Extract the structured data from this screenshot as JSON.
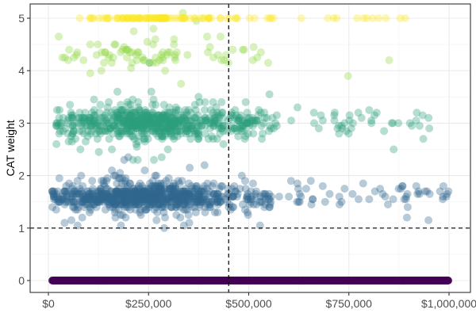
{
  "chart_data": {
    "type": "scatter",
    "title": "",
    "xlabel": "",
    "ylabel": "CAT weight",
    "xlim": [
      0,
      1000000
    ],
    "ylim": [
      0,
      5
    ],
    "x_ticks": [
      0,
      250000,
      500000,
      750000,
      1000000
    ],
    "x_tick_labels": [
      "$0",
      "$250,000",
      "$500,000",
      "$750,000",
      "$1,000,000"
    ],
    "y_ticks": [
      0,
      1,
      2,
      3,
      4,
      5
    ],
    "y_tick_labels": [
      "0",
      "1",
      "2",
      "3",
      "4",
      "5"
    ],
    "grid": true,
    "reference_lines": [
      {
        "axis": "x",
        "value": 450000,
        "style": "dashed"
      },
      {
        "axis": "y",
        "value": 1,
        "style": "dashed"
      }
    ],
    "color_scale": "viridis by CAT weight",
    "colors": [
      "#440154",
      "#3b528b",
      "#21908c",
      "#5ec962",
      "#fde725"
    ],
    "point_alpha": 0.35,
    "clusters": [
      {
        "y_center": 0,
        "y_spread": 0.0,
        "x_range": [
          10000,
          1000000
        ],
        "density": "continuous band",
        "color": "#440154"
      },
      {
        "y_center": 1.6,
        "y_spread": 0.25,
        "x_range": [
          10000,
          1000000
        ],
        "peak_x": 250000,
        "color": "#31688e"
      },
      {
        "y_center": 3.0,
        "y_spread": 0.3,
        "x_range": [
          20000,
          990000
        ],
        "peak_x": 250000,
        "color": "#2a9d7a"
      },
      {
        "y_center": 4.3,
        "y_spread": 0.3,
        "x_range": [
          20000,
          960000
        ],
        "peak_x": 250000,
        "color": "#90d743"
      },
      {
        "y_center": 5.0,
        "y_spread": 0.0,
        "x_range": [
          40000,
          960000
        ],
        "peak_x": 250000,
        "color": "#fde725"
      }
    ]
  }
}
